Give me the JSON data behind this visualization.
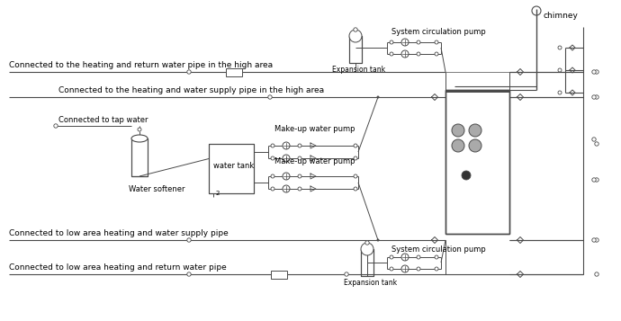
{
  "bg_color": "#ffffff",
  "line_color": "#4a4a4a",
  "text_color": "#000000",
  "lw": 0.7,
  "figsize": [
    6.9,
    3.57
  ],
  "dpi": 100,
  "labels": {
    "high_return": "Connected to the heating and return water pipe in the high area",
    "high_supply": "Connected to the heating and water supply pipe in the high area",
    "tap_water": "Connected to tap water",
    "water_softener": "Water softener",
    "water_tank": "water tank",
    "makeup1": "Make-up water pump",
    "makeup2": "Make-up water pump",
    "low_supply": "Connected to low area heating and water supply pipe",
    "low_return": "Connected to low area heating and return water pipe",
    "expansion_top": "Expansion tank",
    "expansion_bot": "Expansion tank",
    "circ_pump_top": "System circulation pump",
    "circ_pump_bot": "System circulation pump",
    "chimney": "chimney"
  }
}
